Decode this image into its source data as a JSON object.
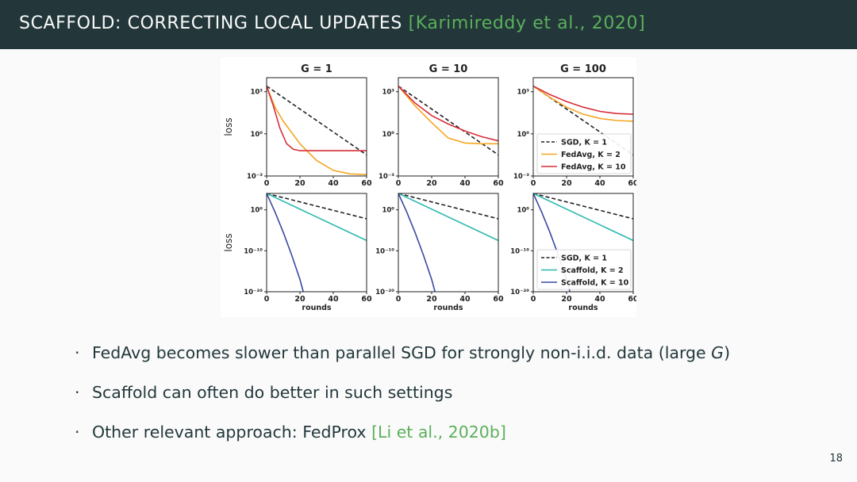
{
  "slide": {
    "title": "SCAFFOLD: CORRECTING LOCAL UPDATES",
    "title_cite": "[Karimireddy et al., 2020]",
    "page_number": "18"
  },
  "bullets": [
    {
      "text": "FedAvg becomes slower than parallel SGD for strongly non-i.i.d. data (large ",
      "italic": "G",
      "tail": ")",
      "cite": ""
    },
    {
      "text": "Scaffold can often do better in such settings",
      "italic": "",
      "tail": "",
      "cite": ""
    },
    {
      "text": "Other relevant approach: FedProx ",
      "italic": "",
      "tail": "",
      "cite": "[Li et al., 2020b]"
    }
  ],
  "colors": {
    "header_bg": "#23373b",
    "citation": "#5ab05a",
    "sgd": "#222222",
    "fedavg_k2": "#f5a623",
    "fedavg_k10": "#d62f3a",
    "scaffold_k2": "#2fb8b0",
    "scaffold_k10": "#3a4aa0"
  },
  "chart_data": [
    {
      "type": "line",
      "row": 0,
      "col": 0,
      "title": "G = 1",
      "ylabel": "loss",
      "xlabel": "",
      "log_y": true,
      "xlim": [
        0,
        60
      ],
      "ylim_log10": [
        -3,
        4
      ],
      "xticks": [
        "0",
        "20",
        "40",
        "60"
      ],
      "yticks": [
        {
          "exp": 3,
          "label": "10³"
        },
        {
          "exp": 0,
          "label": "10⁰"
        },
        {
          "exp": -3,
          "label": "10⁻³"
        }
      ],
      "series": [
        {
          "name": "SGD, K = 1",
          "style": "dashed",
          "color": "#222222",
          "x": [
            0,
            60
          ],
          "log10_y": [
            3.4,
            -1.5
          ]
        },
        {
          "name": "FedAvg, K = 2",
          "style": "solid",
          "color": "#f5a623",
          "x": [
            0,
            5,
            10,
            20,
            30,
            40,
            50,
            60
          ],
          "log10_y": [
            3.4,
            1.9,
            0.9,
            -0.7,
            -1.9,
            -2.6,
            -2.85,
            -2.9
          ]
        },
        {
          "name": "FedAvg, K = 10",
          "style": "solid",
          "color": "#d62f3a",
          "x": [
            0,
            4,
            8,
            12,
            16,
            20,
            30,
            60
          ],
          "log10_y": [
            3.4,
            2.0,
            0.4,
            -0.7,
            -1.1,
            -1.2,
            -1.2,
            -1.2
          ]
        }
      ]
    },
    {
      "type": "line",
      "row": 0,
      "col": 1,
      "title": "G = 10",
      "ylabel": "",
      "xlabel": "",
      "log_y": true,
      "xlim": [
        0,
        60
      ],
      "ylim_log10": [
        -3,
        4
      ],
      "xticks": [
        "0",
        "20",
        "40",
        "60"
      ],
      "yticks": [
        {
          "exp": 3,
          "label": "10³"
        },
        {
          "exp": 0,
          "label": "10⁰"
        },
        {
          "exp": -3,
          "label": "10⁻³"
        }
      ],
      "series": [
        {
          "name": "SGD, K = 1",
          "style": "dashed",
          "color": "#222222",
          "x": [
            0,
            60
          ],
          "log10_y": [
            3.4,
            -1.5
          ]
        },
        {
          "name": "FedAvg, K = 2",
          "style": "solid",
          "color": "#f5a623",
          "x": [
            0,
            10,
            20,
            30,
            40,
            50,
            60
          ],
          "log10_y": [
            3.4,
            2.0,
            0.8,
            -0.3,
            -0.65,
            -0.7,
            -0.7
          ]
        },
        {
          "name": "FedAvg, K = 10",
          "style": "solid",
          "color": "#d62f3a",
          "x": [
            0,
            10,
            20,
            30,
            40,
            50,
            60
          ],
          "log10_y": [
            3.4,
            2.2,
            1.3,
            0.7,
            0.2,
            -0.2,
            -0.5
          ]
        }
      ]
    },
    {
      "type": "line",
      "row": 0,
      "col": 2,
      "title": "G = 100",
      "ylabel": "",
      "xlabel": "",
      "log_y": true,
      "xlim": [
        0,
        60
      ],
      "ylim_log10": [
        -3,
        4
      ],
      "xticks": [
        "0",
        "20",
        "40",
        "60"
      ],
      "yticks": [
        {
          "exp": 3,
          "label": "10³"
        },
        {
          "exp": 0,
          "label": "10⁰"
        },
        {
          "exp": -3,
          "label": "10⁻³"
        }
      ],
      "legend": "bottom-right",
      "series": [
        {
          "name": "SGD, K = 1",
          "style": "dashed",
          "color": "#222222",
          "x": [
            0,
            60
          ],
          "log10_y": [
            3.4,
            -1.5
          ]
        },
        {
          "name": "FedAvg, K = 2",
          "style": "solid",
          "color": "#f5a623",
          "x": [
            0,
            10,
            20,
            30,
            40,
            50,
            60
          ],
          "log10_y": [
            3.4,
            2.6,
            1.9,
            1.4,
            1.1,
            0.95,
            0.9
          ]
        },
        {
          "name": "FedAvg, K = 10",
          "style": "solid",
          "color": "#d62f3a",
          "x": [
            0,
            10,
            20,
            30,
            40,
            50,
            60
          ],
          "log10_y": [
            3.4,
            2.8,
            2.3,
            1.9,
            1.6,
            1.45,
            1.4
          ]
        }
      ]
    },
    {
      "type": "line",
      "row": 1,
      "col": 0,
      "title": "",
      "ylabel": "loss",
      "xlabel": "rounds",
      "log_y": true,
      "xlim": [
        0,
        60
      ],
      "ylim_log10": [
        -20,
        4
      ],
      "xticks": [
        "0",
        "20",
        "40",
        "60"
      ],
      "yticks": [
        {
          "exp": 0,
          "label": "10⁰"
        },
        {
          "exp": -10,
          "label": "10⁻¹⁰"
        },
        {
          "exp": -20,
          "label": "10⁻²⁰"
        }
      ],
      "series": [
        {
          "name": "SGD, K = 1",
          "style": "dashed",
          "color": "#222222",
          "x": [
            0,
            60
          ],
          "log10_y": [
            4,
            -2.2
          ]
        },
        {
          "name": "Scaffold, K = 2",
          "style": "solid",
          "color": "#2fb8b0",
          "x": [
            0,
            60
          ],
          "log10_y": [
            4,
            -7.5
          ]
        },
        {
          "name": "Scaffold, K = 10",
          "style": "solid",
          "color": "#3a4aa0",
          "x": [
            0,
            5,
            10,
            15,
            20,
            22
          ],
          "log10_y": [
            4,
            -0.5,
            -5.5,
            -11,
            -17,
            -20
          ]
        }
      ]
    },
    {
      "type": "line",
      "row": 1,
      "col": 1,
      "title": "",
      "ylabel": "",
      "xlabel": "rounds",
      "log_y": true,
      "xlim": [
        0,
        60
      ],
      "ylim_log10": [
        -20,
        4
      ],
      "xticks": [
        "0",
        "20",
        "40",
        "60"
      ],
      "yticks": [
        {
          "exp": 0,
          "label": "10⁰"
        },
        {
          "exp": -10,
          "label": "10⁻¹⁰"
        },
        {
          "exp": -20,
          "label": "10⁻²⁰"
        }
      ],
      "series": [
        {
          "name": "SGD, K = 1",
          "style": "dashed",
          "color": "#222222",
          "x": [
            0,
            60
          ],
          "log10_y": [
            4,
            -2.2
          ]
        },
        {
          "name": "Scaffold, K = 2",
          "style": "solid",
          "color": "#2fb8b0",
          "x": [
            0,
            60
          ],
          "log10_y": [
            4,
            -7.5
          ]
        },
        {
          "name": "Scaffold, K = 10",
          "style": "solid",
          "color": "#3a4aa0",
          "x": [
            0,
            5,
            10,
            15,
            20,
            22
          ],
          "log10_y": [
            4,
            -0.5,
            -5.5,
            -11,
            -17,
            -20
          ]
        }
      ]
    },
    {
      "type": "line",
      "row": 1,
      "col": 2,
      "title": "",
      "ylabel": "",
      "xlabel": "rounds",
      "log_y": true,
      "xlim": [
        0,
        60
      ],
      "ylim_log10": [
        -20,
        4
      ],
      "xticks": [
        "0",
        "20",
        "40",
        "60"
      ],
      "yticks": [
        {
          "exp": 0,
          "label": "10⁰"
        },
        {
          "exp": -10,
          "label": "10⁻¹⁰"
        },
        {
          "exp": -20,
          "label": "10⁻²⁰"
        }
      ],
      "legend": "bottom-right",
      "series": [
        {
          "name": "SGD, K = 1",
          "style": "dashed",
          "color": "#222222",
          "x": [
            0,
            60
          ],
          "log10_y": [
            4,
            -2.2
          ]
        },
        {
          "name": "Scaffold, K = 2",
          "style": "solid",
          "color": "#2fb8b0",
          "x": [
            0,
            60
          ],
          "log10_y": [
            4,
            -7.5
          ]
        },
        {
          "name": "Scaffold, K = 10",
          "style": "solid",
          "color": "#3a4aa0",
          "x": [
            0,
            5,
            10,
            15,
            20,
            22
          ],
          "log10_y": [
            4,
            -0.5,
            -5.5,
            -11,
            -17,
            -20
          ]
        }
      ]
    }
  ]
}
